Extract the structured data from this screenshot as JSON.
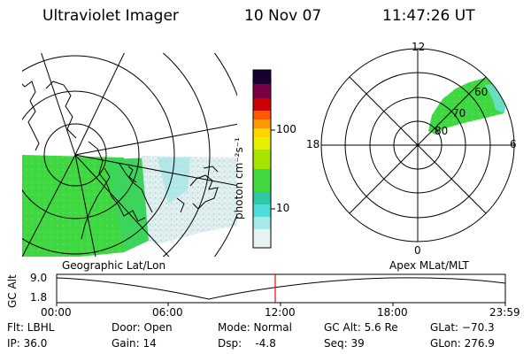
{
  "header": {
    "title": "Ultraviolet Imager",
    "date": "10 Nov 07",
    "time": "11:47:26 UT"
  },
  "colorbar": {
    "unit_label": "photon cm⁻²s⁻¹",
    "ticks": [
      "100",
      "10"
    ]
  },
  "geo_panel": {
    "label": "Geographic Lat/Lon"
  },
  "polar_panel": {
    "label": "Apex MLat/MLT",
    "mlt_labels": {
      "top": "12",
      "left": "18",
      "right": "6",
      "bottom": "0"
    },
    "lat_labels": [
      "60",
      "70",
      "80"
    ]
  },
  "timeline": {
    "axis_label": "GC Alt",
    "y_ticks": [
      "9.0",
      "1.8"
    ],
    "x_ticks": [
      "00:00",
      "06:00",
      "12:00",
      "18:00",
      "23:59"
    ],
    "marker_color": "#ff0000"
  },
  "info": {
    "flt": "Flt: LBHL",
    "ip": "IP: 36.0",
    "door": "Door: Open",
    "gain": "Gain: 14",
    "mode": "Mode: Normal",
    "dsp": "Dsp:    -4.8",
    "gc_alt": "GC Alt: 5.6 Re",
    "seq": "Seq: 39",
    "glat": "GLat: −70.3",
    "glon": "GLon: 276.9"
  },
  "colors": {
    "aurora_green": "#3fd93f",
    "aurora_cyan": "#6fe0e0",
    "aurora_light": "#d8ecec"
  }
}
